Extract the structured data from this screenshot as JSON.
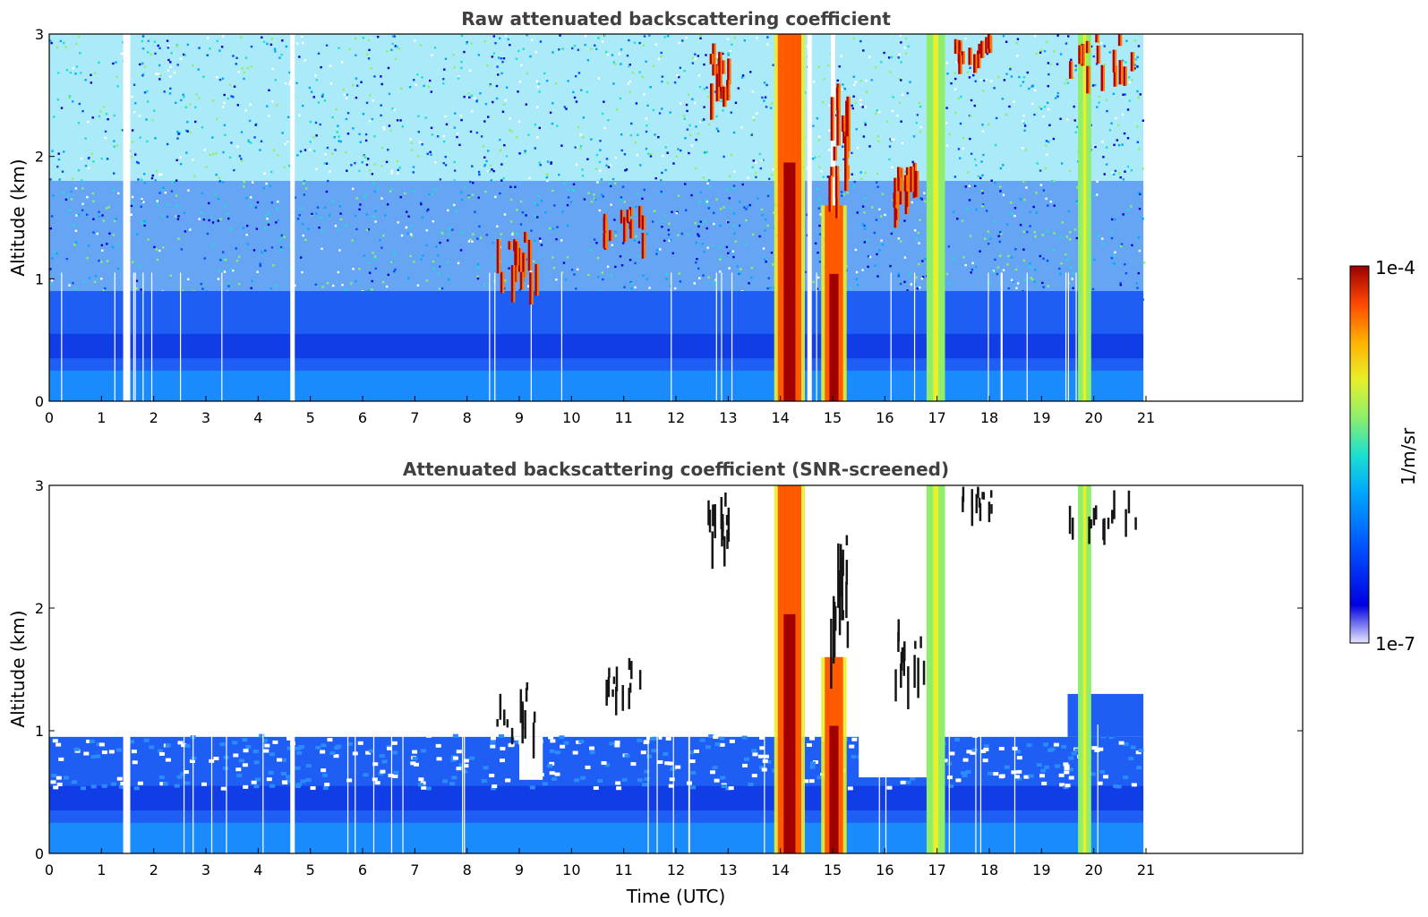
{
  "figure": {
    "colormap": [
      "#ffffff",
      "#c9c9f0",
      "#0000d8",
      "#0050ff",
      "#00a8ff",
      "#1de0d0",
      "#8fef6a",
      "#e9ef2a",
      "#ffb000",
      "#ff4800",
      "#b00000"
    ],
    "colorbar": {
      "label": "1/m/sr",
      "max_label": "1e-4",
      "min_label": "1e-7"
    }
  },
  "chart_data": [
    {
      "type": "heatmap",
      "title": "Raw attenuated backscattering coefficient",
      "xlabel": "",
      "ylabel": "Altitude (km)",
      "xlim": [
        0,
        24
      ],
      "ylim": [
        0,
        3
      ],
      "xticks": [
        0,
        1,
        2,
        3,
        4,
        5,
        6,
        7,
        8,
        9,
        10,
        11,
        12,
        13,
        14,
        15,
        16,
        17,
        18,
        19,
        20,
        21
      ],
      "xtick_labels": [
        "0",
        "1",
        "2",
        "3",
        "4",
        "5",
        "6",
        "7",
        "8",
        "9",
        "10",
        "11",
        "12",
        "13",
        "14",
        "15",
        "16",
        "17",
        "18",
        "19",
        "20",
        "21"
      ],
      "yticks": [
        0,
        1,
        2,
        3
      ],
      "ytick_labels": [
        "0",
        "1",
        "2",
        "3"
      ],
      "data_end_hour": 20.95,
      "boundary_layer_top_km": 0.95,
      "noise": "high",
      "gap_hours": [
        1.45,
        1.5,
        4.65,
        14.55,
        15.0
      ],
      "layers": [
        {
          "x0": 13.95,
          "x1": 14.4,
          "y0": 0,
          "y1": 3,
          "level": "high"
        },
        {
          "x0": 14.85,
          "x1": 15.2,
          "y0": 0,
          "y1": 1.6,
          "level": "high"
        },
        {
          "x0": 16.85,
          "x1": 17.1,
          "y0": 0,
          "y1": 3,
          "level": "mid"
        },
        {
          "x0": 19.75,
          "x1": 19.9,
          "y0": 0,
          "y1": 3,
          "level": "mid"
        },
        {
          "x0": 8.5,
          "x1": 9.3,
          "y0": 0.85,
          "y1": 1.4,
          "level": "high"
        },
        {
          "x0": 10.5,
          "x1": 11.4,
          "y0": 1.2,
          "y1": 1.6,
          "level": "high"
        },
        {
          "x0": 12.6,
          "x1": 13.0,
          "y0": 2.4,
          "y1": 2.95,
          "level": "high"
        },
        {
          "x0": 14.9,
          "x1": 15.3,
          "y0": 1.45,
          "y1": 2.6,
          "level": "high"
        },
        {
          "x0": 16.1,
          "x1": 16.8,
          "y0": 1.3,
          "y1": 1.95,
          "level": "high"
        },
        {
          "x0": 17.3,
          "x1": 18.1,
          "y0": 2.75,
          "y1": 3,
          "level": "high"
        },
        {
          "x0": 19.4,
          "x1": 20.9,
          "y0": 2.6,
          "y1": 3,
          "level": "high"
        }
      ]
    },
    {
      "type": "heatmap",
      "title": "Attenuated backscattering coefficient (SNR-screened)",
      "xlabel": "Time (UTC)",
      "ylabel": "Altitude (km)",
      "xlim": [
        0,
        24
      ],
      "ylim": [
        0,
        3
      ],
      "xticks": [
        0,
        1,
        2,
        3,
        4,
        5,
        6,
        7,
        8,
        9,
        10,
        11,
        12,
        13,
        14,
        15,
        16,
        17,
        18,
        19,
        20,
        21
      ],
      "xtick_labels": [
        "0",
        "1",
        "2",
        "3",
        "4",
        "5",
        "6",
        "7",
        "8",
        "9",
        "10",
        "11",
        "12",
        "13",
        "14",
        "15",
        "16",
        "17",
        "18",
        "19",
        "20",
        "21"
      ],
      "yticks": [
        0,
        1,
        2,
        3
      ],
      "ytick_labels": [
        "0",
        "1",
        "2",
        "3"
      ],
      "data_end_hour": 20.95,
      "boundary_layer_top_km": 0.95,
      "noise": "screened",
      "gap_hours": [
        1.45,
        1.5,
        4.65
      ],
      "layers": [
        {
          "x0": 13.95,
          "x1": 14.4,
          "y0": 0,
          "y1": 3,
          "level": "high"
        },
        {
          "x0": 14.85,
          "x1": 15.2,
          "y0": 0,
          "y1": 1.6,
          "level": "high"
        },
        {
          "x0": 16.85,
          "x1": 17.1,
          "y0": 0,
          "y1": 3,
          "level": "mid"
        },
        {
          "x0": 19.75,
          "x1": 19.9,
          "y0": 0,
          "y1": 3,
          "level": "mid"
        },
        {
          "x0": 8.5,
          "x1": 9.3,
          "y0": 0.85,
          "y1": 1.4,
          "level": "dark"
        },
        {
          "x0": 10.5,
          "x1": 11.4,
          "y0": 1.2,
          "y1": 1.6,
          "level": "dark"
        },
        {
          "x0": 12.6,
          "x1": 13.0,
          "y0": 2.4,
          "y1": 2.95,
          "level": "dark"
        },
        {
          "x0": 14.9,
          "x1": 15.3,
          "y0": 1.45,
          "y1": 2.6,
          "level": "dark"
        },
        {
          "x0": 16.1,
          "x1": 16.8,
          "y0": 1.3,
          "y1": 1.95,
          "level": "dark"
        },
        {
          "x0": 17.3,
          "x1": 18.1,
          "y0": 2.75,
          "y1": 3,
          "level": "dark"
        },
        {
          "x0": 19.4,
          "x1": 20.9,
          "y0": 2.6,
          "y1": 3,
          "level": "dark"
        }
      ]
    }
  ]
}
